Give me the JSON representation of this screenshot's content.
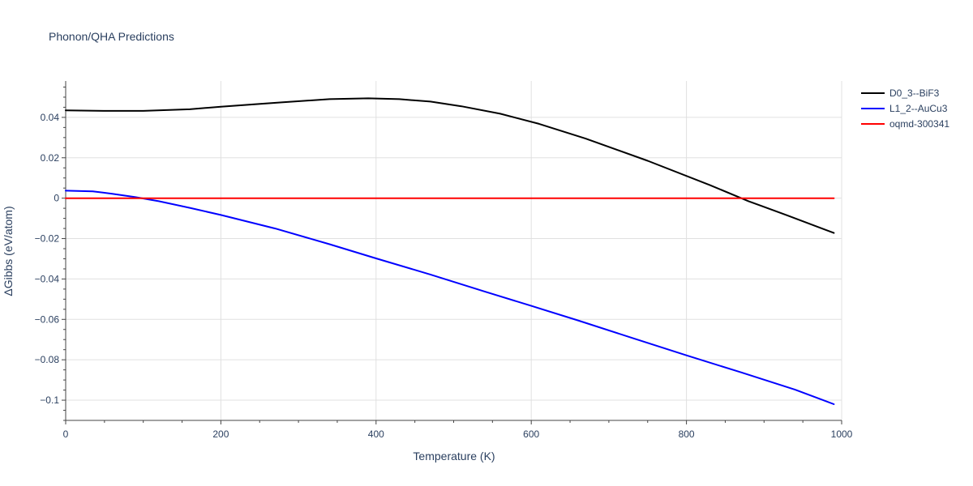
{
  "chart_data": {
    "type": "line",
    "title": "Phonon/QHA Predictions",
    "xlabel": "Temperature (K)",
    "ylabel": "ΔGibbs (eV/atom)",
    "xlim": [
      0,
      1000
    ],
    "ylim": [
      -0.11,
      0.058
    ],
    "x_ticks": [
      0,
      200,
      400,
      600,
      800,
      1000
    ],
    "x_tick_labels": [
      "0",
      "200",
      "400",
      "600",
      "800",
      "1000"
    ],
    "y_ticks": [
      0.04,
      0.02,
      0,
      -0.02,
      -0.04,
      -0.06,
      -0.08,
      -0.1
    ],
    "y_tick_labels": [
      "0.04",
      "0.02",
      "0",
      "−0.02",
      "−0.04",
      "−0.06",
      "−0.08",
      "−0.1"
    ],
    "grid": true,
    "legend_position": "top-right, outside plot",
    "series": [
      {
        "name": "D0_3--BiF3",
        "color": "#000000",
        "x": [
          0,
          50,
          100,
          160,
          200,
          280,
          340,
          390,
          430,
          470,
          510,
          560,
          610,
          670,
          750,
          830,
          880,
          930,
          990
        ],
        "y": [
          0.0435,
          0.0432,
          0.0432,
          0.044,
          0.0453,
          0.0475,
          0.049,
          0.0494,
          0.049,
          0.0478,
          0.0455,
          0.0418,
          0.0368,
          0.0295,
          0.0185,
          0.0065,
          -0.0015,
          -0.0085,
          -0.0172
        ]
      },
      {
        "name": "L1_2--AuCu3",
        "color": "#0000ff",
        "x": [
          0,
          35,
          60,
          90,
          120,
          160,
          200,
          270,
          340,
          400,
          470,
          540,
          600,
          660,
          730,
          800,
          870,
          940,
          990
        ],
        "y": [
          0.0037,
          0.0034,
          0.0022,
          0.0005,
          -0.0015,
          -0.0048,
          -0.0083,
          -0.015,
          -0.0228,
          -0.0298,
          -0.0378,
          -0.0462,
          -0.0533,
          -0.0605,
          -0.0692,
          -0.0778,
          -0.0862,
          -0.0948,
          -0.102
        ]
      },
      {
        "name": "oqmd-300341",
        "color": "#ff0000",
        "x": [
          0,
          990
        ],
        "y": [
          0,
          0
        ]
      }
    ]
  }
}
